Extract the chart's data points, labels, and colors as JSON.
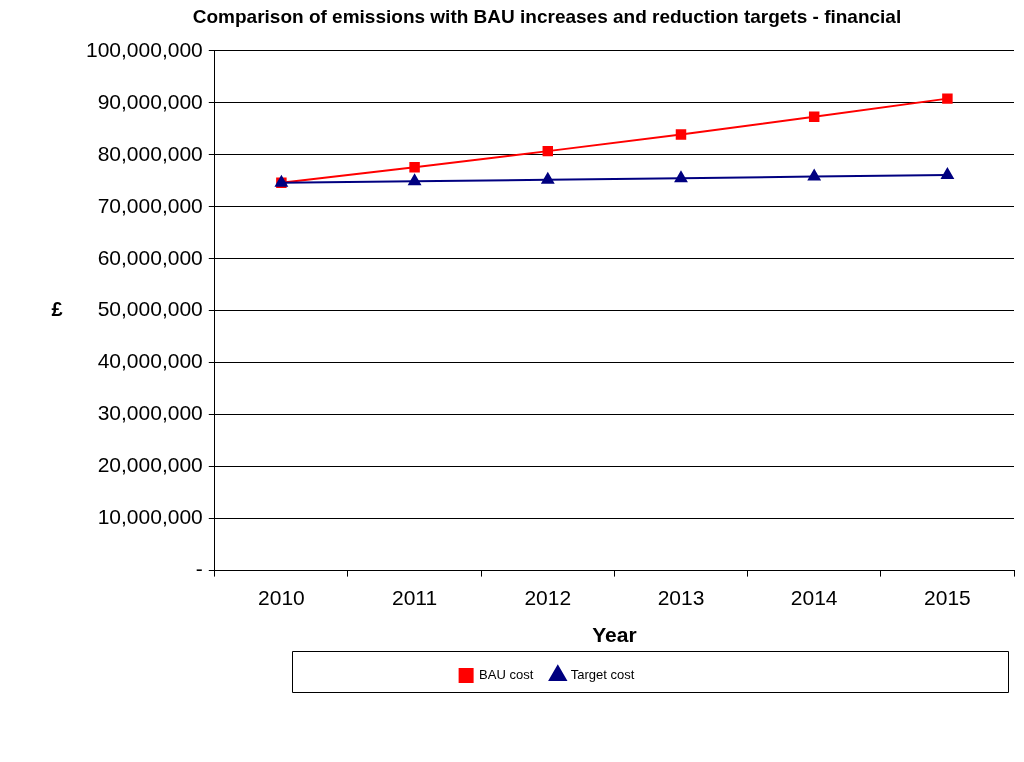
{
  "chart_data": {
    "type": "line",
    "title": "Comparison of emissions with BAU increases and reduction targets - financial",
    "xlabel": "Year",
    "ylabel": "£",
    "categories": [
      "2010",
      "2011",
      "2012",
      "2013",
      "2014",
      "2015"
    ],
    "series": [
      {
        "name": "BAU cost",
        "color": "#ff0000",
        "marker": "square",
        "values": [
          74600000,
          77600000,
          80700000,
          83900000,
          87300000,
          90800000
        ]
      },
      {
        "name": "Target cost",
        "color": "#000080",
        "marker": "triangle",
        "values": [
          74600000,
          74900000,
          75200000,
          75500000,
          75800000,
          76100000
        ]
      }
    ],
    "ylim": [
      0,
      100000000
    ],
    "yticks": [
      {
        "value": 0,
        "label": "-"
      },
      {
        "value": 10000000,
        "label": "10,000,000"
      },
      {
        "value": 20000000,
        "label": "20,000,000"
      },
      {
        "value": 30000000,
        "label": "30,000,000"
      },
      {
        "value": 40000000,
        "label": "40,000,000"
      },
      {
        "value": 50000000,
        "label": "50,000,000"
      },
      {
        "value": 60000000,
        "label": "60,000,000"
      },
      {
        "value": 70000000,
        "label": "70,000,000"
      },
      {
        "value": 80000000,
        "label": "80,000,000"
      },
      {
        "value": 90000000,
        "label": "90,000,000"
      },
      {
        "value": 100000000,
        "label": "100,000,000"
      }
    ],
    "grid": "y",
    "legend": "bottom",
    "line_style": "solid"
  }
}
